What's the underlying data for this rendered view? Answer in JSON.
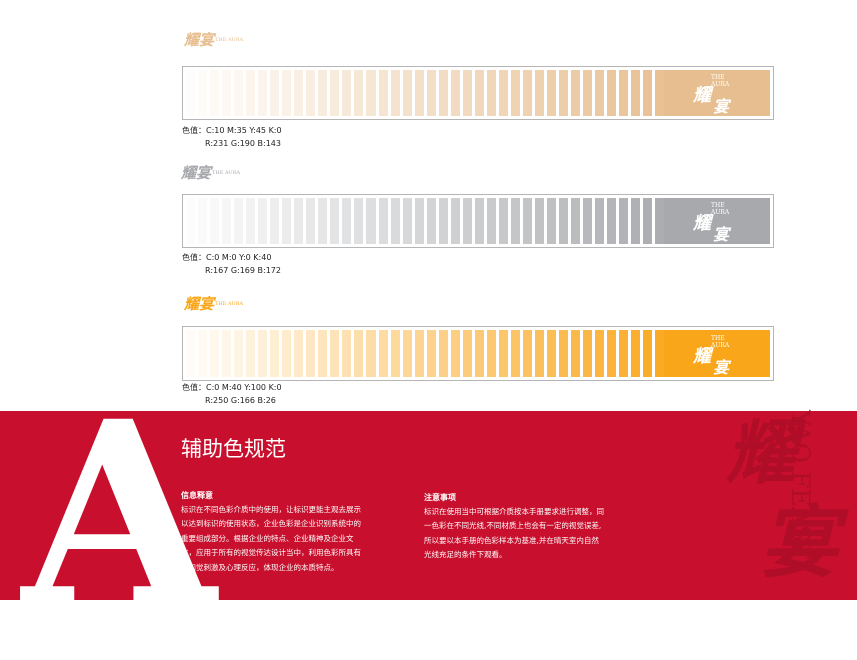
{
  "colors": {
    "tan": "#e7be8f",
    "gray": "#a7a9ac",
    "orange": "#faa61a",
    "red_band": "#c8102e"
  },
  "rows": [
    {
      "logo": {
        "mark": "耀宴",
        "tag": "THE AURA"
      },
      "swatch_mark": {
        "tag_line1": "THE",
        "tag_line2": "AURA",
        "c1": "耀",
        "c2": "宴"
      },
      "cmyk": "色值：C:10 M:35 Y:45 K:0",
      "rgb": "R:231 G:190 B:143"
    },
    {
      "logo": {
        "mark": "耀宴",
        "tag": "THE AURA"
      },
      "swatch_mark": {
        "tag_line1": "THE",
        "tag_line2": "AURA",
        "c1": "耀",
        "c2": "宴"
      },
      "cmyk": "色值：C:0 M:0 Y:0 K:40",
      "rgb": "R:167 G:169 B:172"
    },
    {
      "logo": {
        "mark": "耀宴",
        "tag": "THE AURA"
      },
      "swatch_mark": {
        "tag_line1": "THE",
        "tag_line2": "AURA",
        "c1": "耀",
        "c2": "宴"
      },
      "cmyk": "色值：C:0 M:40 Y:100 K:0",
      "rgb": "R:250 G:166 B:26"
    }
  ],
  "section": {
    "letter": "A",
    "title": "辅助色规范",
    "left_heading": "信息释意",
    "left_lines": [
      "标识在不同色彩介质中的使用，让标识更能主观去展示",
      "以达到标识的使用状态，企业色彩是企业识别系统中的",
      "重要组成部分。根据企业的特点、企业精神及企业文",
      "化，应用于所有的视觉传达设计当中，利用色彩所具有",
      "的知觉刺激及心理反应，体现企业的本质特点。"
    ],
    "right_heading": "注意事项",
    "right_lines": [
      "标识在使用当中可根据介质按本手册要求进行调整，同",
      "一色彩在不同光线,不同材质上也会有一定的视觉误差,",
      "所以要以本手册的色彩样本为基准,并在晴天室内自然",
      "光线充足的条件下观看。"
    ],
    "watermark_han": "耀宴",
    "watermark_en": "YAO FEAST"
  }
}
